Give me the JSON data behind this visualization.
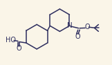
{
  "background_color": "#faf5e8",
  "bond_color": "#2d2d5e",
  "text_color": "#2d2d5e",
  "line_width": 1.1,
  "font_size": 6.5,
  "xlim": [
    0,
    10
  ],
  "ylim": [
    0,
    6
  ],
  "figsize": [
    1.62,
    0.94
  ],
  "dpi": 100
}
